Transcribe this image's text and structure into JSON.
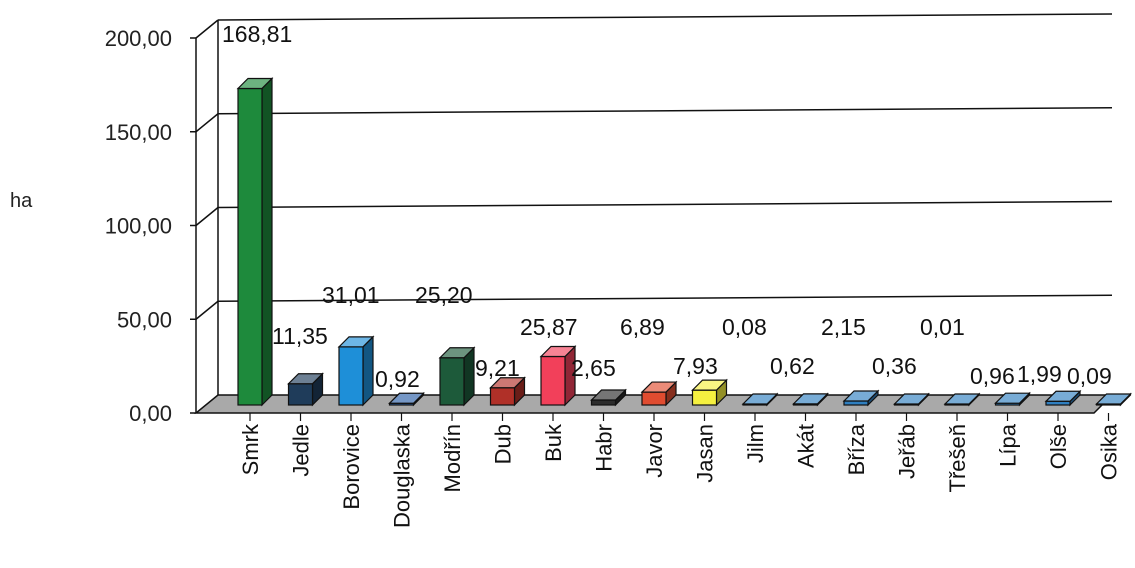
{
  "chart_data": {
    "type": "bar",
    "title": "",
    "xlabel": "",
    "ylabel": "ha",
    "ylim": [
      0,
      200
    ],
    "y_ticks": [
      "0,00",
      "50,00",
      "100,00",
      "150,00",
      "200,00"
    ],
    "grid": true,
    "categories": [
      "Smrk",
      "Jedle",
      "Borovice",
      "Douglaska",
      "Modřín",
      "Dub",
      "Buk",
      "Habr",
      "Javor",
      "Jasan",
      "Jilm",
      "Akát",
      "Bříza",
      "Jeřáb",
      "Třešeň",
      "Lípa",
      "Olše",
      "Osika"
    ],
    "values": [
      168.81,
      11.35,
      31.01,
      0.92,
      25.2,
      9.21,
      25.87,
      2.65,
      6.89,
      7.93,
      0.08,
      0.62,
      2.15,
      0.36,
      0.01,
      0.96,
      1.99,
      0.09
    ],
    "value_labels": [
      "168,81",
      "11,35",
      "31,01",
      "0,92",
      "25,20",
      "9,21",
      "25,87",
      "2,65",
      "6,89",
      "7,93",
      "0,08",
      "0,62",
      "2,15",
      "0,36",
      "0,01",
      "0,96",
      "1,99",
      "0,09"
    ],
    "colors": [
      "#1e8a3c",
      "#1f3c5a",
      "#1e8fd8",
      "#2a5fa8",
      "#1d5a3a",
      "#b03028",
      "#f2405a",
      "#2c2c2c",
      "#e04c30",
      "#f5f040",
      "#2f7fc0",
      "#2f7fc0",
      "#2f7fc0",
      "#2f7fc0",
      "#2f7fc0",
      "#2f7fc0",
      "#2f7fc0",
      "#2f7fc0"
    ]
  }
}
